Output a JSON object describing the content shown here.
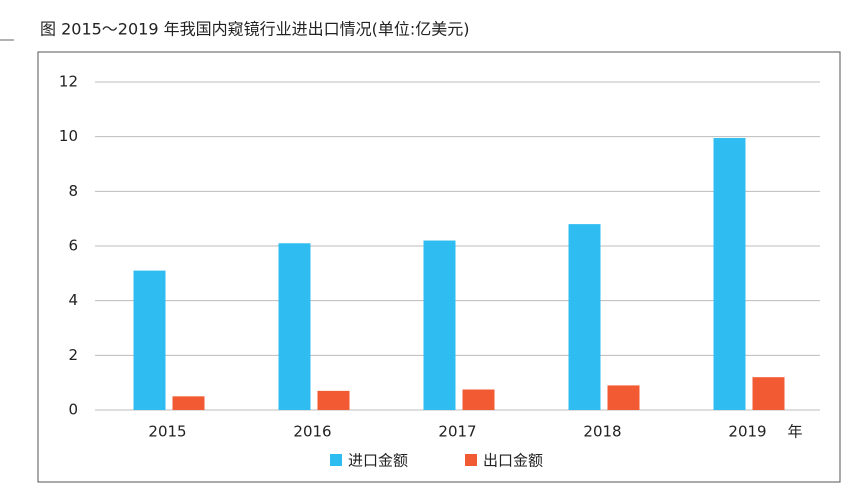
{
  "chart_data": {
    "type": "bar",
    "title": "图   2015～2019 年我国内窥镜行业进出口情况(单位:亿美元)",
    "x_label": "年",
    "categories": [
      "2015",
      "2016",
      "2017",
      "2018",
      "2019"
    ],
    "series": [
      {
        "name": "进口金额",
        "color": "#2fbcf0",
        "values": [
          5.1,
          6.1,
          6.2,
          6.8,
          9.95
        ]
      },
      {
        "name": "出口金额",
        "color": "#f25a33",
        "values": [
          0.5,
          0.7,
          0.75,
          0.9,
          1.2
        ]
      }
    ],
    "ylim": [
      0,
      12
    ],
    "yticks": [
      0,
      2,
      4,
      6,
      8,
      10,
      12
    ],
    "grid": true,
    "legend": "bottom"
  }
}
